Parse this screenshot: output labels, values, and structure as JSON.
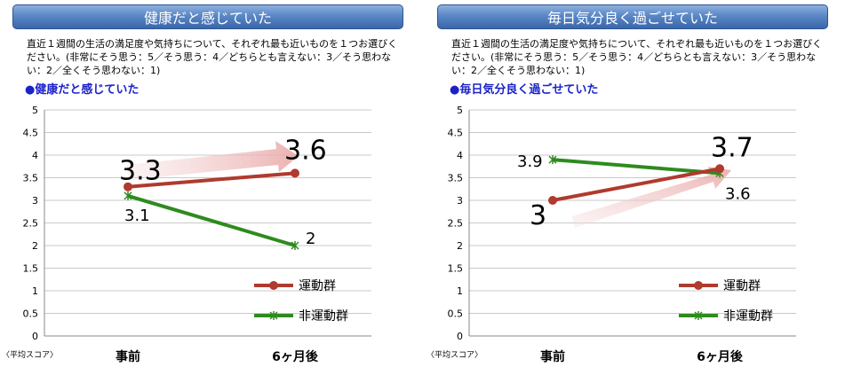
{
  "score_note": "〈平均スコア〉",
  "charts": [
    {
      "header": "健康だと感じていた",
      "question": "直近１週間の生活の満足度や気持ちについて、それぞれ最も近いものを１つお選びください。(非常にそう思う：5／そう思う：4／どちらとも言えない：3／そう思わない：2／全くそう思わない：1)",
      "subtitle": "●健康だと感じていた",
      "y_ticks": [
        "0",
        "0.5",
        "1",
        "1.5",
        "2",
        "2.5",
        "3",
        "3.5",
        "4",
        "4.5",
        "5"
      ],
      "categories": [
        "事前",
        "6ヶ月後"
      ],
      "legend": [
        "運動群",
        "非運動群"
      ],
      "exercise_labels": [
        "3.3",
        "3.6"
      ],
      "nonexercise_labels": [
        "3.1",
        "2"
      ]
    },
    {
      "header": "毎日気分良く過ごせていた",
      "question": "直近１週間の生活の満足度や気持ちについて、それぞれ最も近いものを１つお選びください。(非常にそう思う：5／そう思う：4／どちらとも言えない：3／そう思わない：2／全くそう思わない：1)",
      "subtitle": "●毎日気分良く過ごせていた",
      "y_ticks": [
        "0",
        "0.5",
        "1",
        "1.5",
        "2",
        "2.5",
        "3",
        "3.5",
        "4",
        "4.5",
        "5"
      ],
      "categories": [
        "事前",
        "6ヶ月後"
      ],
      "legend": [
        "運動群",
        "非運動群"
      ],
      "exercise_labels": [
        "3",
        "3.7"
      ],
      "nonexercise_labels": [
        "3.9",
        "3.6"
      ]
    }
  ],
  "chart_data": [
    {
      "type": "line",
      "title": "健康だと感じていた",
      "categories": [
        "事前",
        "6ヶ月後"
      ],
      "series": [
        {
          "name": "運動群",
          "values": [
            3.3,
            3.6
          ],
          "color": "#b03a2e"
        },
        {
          "name": "非運動群",
          "values": [
            3.1,
            2.0
          ],
          "color": "#2e8b1e"
        }
      ],
      "ylim": [
        0,
        5
      ],
      "ylabel": "〈平均スコア〉",
      "grid": true,
      "legend": "bottom-right"
    },
    {
      "type": "line",
      "title": "毎日気分良く過ごせていた",
      "categories": [
        "事前",
        "6ヶ月後"
      ],
      "series": [
        {
          "name": "運動群",
          "values": [
            3.0,
            3.7
          ],
          "color": "#b03a2e"
        },
        {
          "name": "非運動群",
          "values": [
            3.9,
            3.6
          ],
          "color": "#2e8b1e"
        }
      ],
      "ylim": [
        0,
        5
      ],
      "ylabel": "〈平均スコア〉",
      "grid": true,
      "legend": "bottom-right"
    }
  ]
}
